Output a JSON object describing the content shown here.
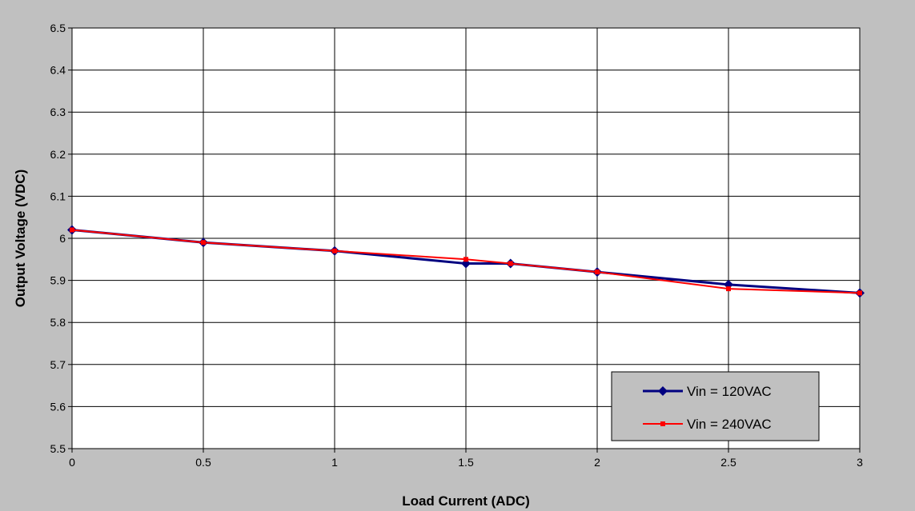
{
  "chart_data": {
    "type": "line",
    "title": "",
    "xlabel": "Load Current (ADC)",
    "ylabel": "Output Voltage (VDC)",
    "xlim": [
      0,
      3
    ],
    "ylim": [
      5.5,
      6.5
    ],
    "x_ticks": [
      0,
      0.5,
      1,
      1.5,
      2,
      2.5,
      3
    ],
    "x_tick_labels": [
      "0",
      "0.5",
      "1",
      "1.5",
      "2",
      "2.5",
      "3"
    ],
    "y_ticks": [
      5.5,
      5.6,
      5.7,
      5.8,
      5.9,
      6,
      6.1,
      6.2,
      6.3,
      6.4,
      6.5
    ],
    "y_tick_labels": [
      "5.5",
      "5.6",
      "5.7",
      "5.8",
      "5.9",
      "6",
      "6.1",
      "6.2",
      "6.3",
      "6.4",
      "6.5"
    ],
    "grid": true,
    "legend_position": "bottom-right",
    "series": [
      {
        "name": "Vin = 120VAC",
        "color": "#000080",
        "marker": "diamond",
        "x": [
          0,
          0.5,
          1,
          1.5,
          1.67,
          2,
          2.5,
          3
        ],
        "y": [
          6.02,
          5.99,
          5.97,
          5.94,
          5.94,
          5.92,
          5.89,
          5.87
        ]
      },
      {
        "name": "Vin = 240VAC",
        "color": "#ff0000",
        "marker": "square",
        "x": [
          0,
          0.5,
          1,
          1.5,
          1.67,
          2,
          2.5,
          3
        ],
        "y": [
          6.02,
          5.99,
          5.97,
          5.95,
          5.94,
          5.92,
          5.88,
          5.87
        ]
      }
    ]
  }
}
